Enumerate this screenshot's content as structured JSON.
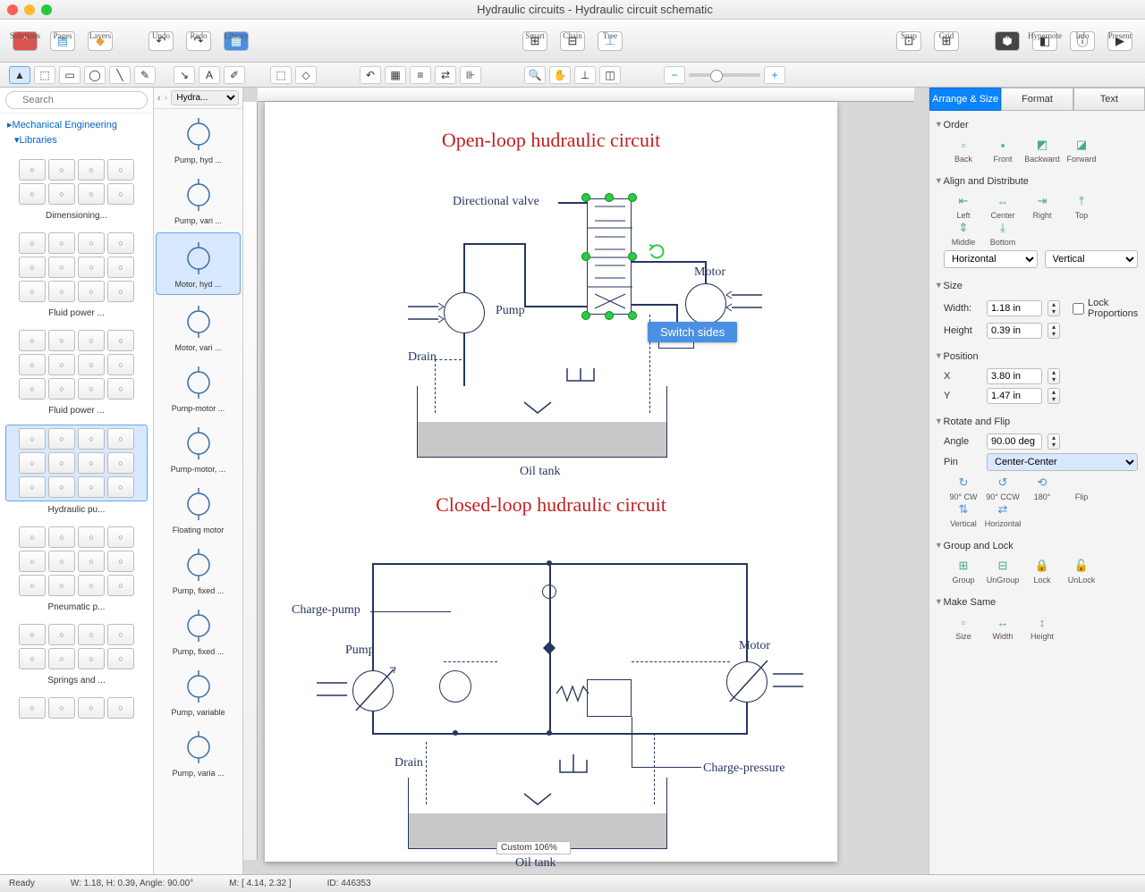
{
  "window": {
    "title": "Hydraulic circuits - Hydraulic circuit schematic"
  },
  "toolbar": {
    "solutions": "Solutions",
    "pages": "Pages",
    "layers": "Layers",
    "undo": "Undo",
    "redo": "Redo",
    "library": "Library",
    "smart": "Smart",
    "chain": "Chain",
    "tree": "Tree",
    "snap": "Snap",
    "grid": "Grid",
    "format": "Format",
    "hypernote": "Hypernote",
    "info": "Info",
    "present": "Present"
  },
  "sidebar": {
    "search_placeholder": "Search",
    "root": "Mechanical Engineering",
    "libs": "Libraries",
    "groups": [
      {
        "name": "Dimensioning...",
        "cells": 8
      },
      {
        "name": "Fluid power ...",
        "cells": 12
      },
      {
        "name": "Fluid power ...",
        "cells": 12
      },
      {
        "name": "Hydraulic pu...",
        "cells": 12,
        "selected": true
      },
      {
        "name": "Pneumatic p...",
        "cells": 12
      },
      {
        "name": "Springs and ...",
        "cells": 8
      },
      {
        "name": "",
        "cells": 4
      }
    ]
  },
  "strip": {
    "dropdown": "Hydra...",
    "items": [
      {
        "label": "Pump, hyd ..."
      },
      {
        "label": "Pump, vari ..."
      },
      {
        "label": "Motor, hyd ...",
        "selected": true
      },
      {
        "label": "Motor, vari ..."
      },
      {
        "label": "Pump-motor ..."
      },
      {
        "label": "Pump-motor, ..."
      },
      {
        "label": "Floating motor"
      },
      {
        "label": "Pump, fixed ..."
      },
      {
        "label": "Pump, fixed ..."
      },
      {
        "label": "Pump, variable"
      },
      {
        "label": "Pump, varia ..."
      }
    ]
  },
  "canvas": {
    "diag1_title": "Open-loop hudraulic circuit",
    "diag2_title": "Closed-loop hudraulic circuit",
    "labels": {
      "dir_valve": "Directional valve",
      "motor": "Motor",
      "pump": "Pump",
      "drain": "Drain",
      "oil_tank": "Oil tank",
      "charge_pump": "Charge-pump",
      "charge_pressure": "Charge-pressure"
    },
    "tooltip": "Switch sides",
    "colors": {
      "title": "#c41e1e",
      "stroke": "#26365f",
      "fill": "#c8c8c8",
      "handle": "#2ecc40"
    }
  },
  "inspector": {
    "tabs": {
      "arrange": "Arrange & Size",
      "format": "Format",
      "text": "Text"
    },
    "order": {
      "h": "Order",
      "back": "Back",
      "front": "Front",
      "backward": "Backward",
      "forward": "Forward"
    },
    "align": {
      "h": "Align and Distribute",
      "left": "Left",
      "center": "Center",
      "right": "Right",
      "top": "Top",
      "middle": "Middle",
      "bottom": "Bottom",
      "horiz": "Horizontal",
      "vert": "Vertical"
    },
    "size": {
      "h": "Size",
      "width_l": "Width:",
      "width_v": "1.18 in",
      "height_l": "Height",
      "height_v": "0.39 in",
      "lock": "Lock Proportions"
    },
    "position": {
      "h": "Position",
      "x_l": "X",
      "x_v": "3.80 in",
      "y_l": "Y",
      "y_v": "1.47 in"
    },
    "rotate": {
      "h": "Rotate and Flip",
      "angle_l": "Angle",
      "angle_v": "90.00 deg",
      "pin_l": "Pin",
      "pin_v": "Center-Center",
      "cw": "90° CW",
      "ccw": "90° CCW",
      "r180": "180°",
      "flip": "Flip",
      "fv": "Vertical",
      "fh": "Horizontal"
    },
    "group": {
      "h": "Group and Lock",
      "group": "Group",
      "ungroup": "UnGroup",
      "lock": "Lock",
      "unlock": "UnLock"
    },
    "same": {
      "h": "Make Same",
      "size": "Size",
      "width": "Width",
      "height": "Height"
    }
  },
  "status": {
    "ready": "Ready",
    "dims": "W: 1.18,  H: 0.39,  Angle: 90.00°",
    "mouse": "M: [ 4.14, 2.32 ]",
    "id": "ID: 446353",
    "zoom": "Custom 106%"
  }
}
